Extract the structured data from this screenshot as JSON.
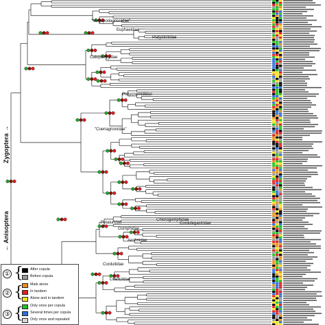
{
  "suborders": {
    "zygoptera": "Zygoptera →",
    "anisoptera": "← Anisoptera"
  },
  "clades": {
    "megapodagrionidae": "\"Megapodagrionidae\"",
    "euphaeidae": "Euphaeidae",
    "platystictidae": "Platystictidae",
    "calopterygidae": "Calopterygidae",
    "platycnemididae": "Platycnemididae",
    "coenagrionidae": "\"Coenagrionidae\"",
    "petaluridae": "Petaluridae",
    "chlorogomphidae": "Chlorogomphidae",
    "gomphidae": "Gomphidae",
    "cordulegastridae": "Cordulegastridae",
    "aeshnidae": "Aeshnidae",
    "corduliidae": "Corduliidae",
    "libellulidae": "Libellulidae"
  },
  "legend": {
    "groups": [
      {
        "number": "①",
        "brace": "{",
        "items": [
          {
            "label": "After copula",
            "color": "#000000"
          },
          {
            "label": "Before copula",
            "color": "#9a9a9a"
          }
        ]
      },
      {
        "number": "②",
        "brace": "{",
        "items": [
          {
            "label": "Male alone",
            "color": "#e8901e"
          },
          {
            "label": "In tandem",
            "color": "#e02020"
          },
          {
            "label": "Alone and in tandem",
            "color": "#f2e21e"
          }
        ]
      },
      {
        "number": "③",
        "brace": "{",
        "items": [
          {
            "label": "Only once per copula",
            "color": "#22c022"
          },
          {
            "label": "Several times per copula",
            "color": "#2f6fd8"
          },
          {
            "label": "Only once and repeated",
            "color": "#d8d8d8"
          }
        ]
      }
    ]
  },
  "colors": {
    "node_top": "#22aa22",
    "node_mid": "#8a1010",
    "node_bottom": "#e02020",
    "branch": "#222222",
    "tip_grid": [
      "#000000",
      "#e02020",
      "#22c022",
      "#2f6fd8",
      "#9a9a9a",
      "#e8901e",
      "#f2e21e"
    ]
  }
}
